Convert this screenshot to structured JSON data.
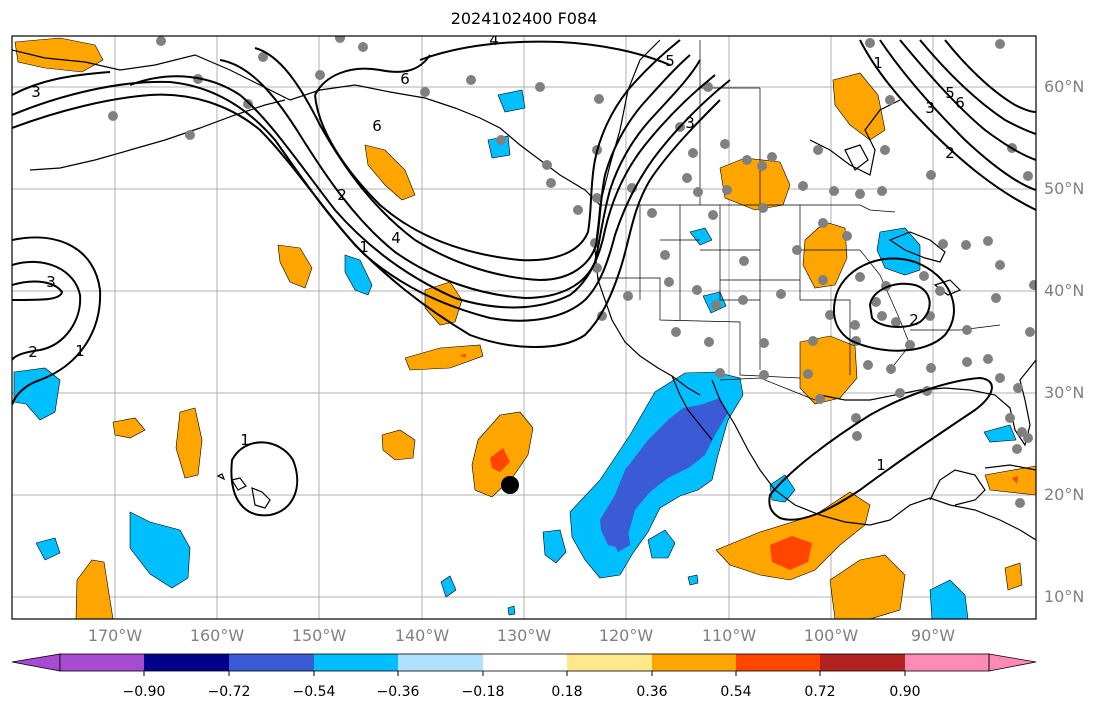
{
  "title": "2024102400 F084",
  "lat_labels": [
    "60°N",
    "50°N",
    "40°N",
    "30°N",
    "20°N",
    "10°N"
  ],
  "lon_labels": [
    "170°W",
    "160°W",
    "150°W",
    "140°W",
    "130°W",
    "120°W",
    "110°W",
    "100°W",
    "90°W"
  ],
  "contour_labels": [
    "3",
    "6",
    "6",
    "5",
    "4",
    "3",
    "2",
    "1",
    "1",
    "2",
    "3",
    "4",
    "5",
    "6",
    "3",
    "2",
    "1",
    "1",
    "2",
    "1"
  ],
  "colorbar": {
    "ticks": [
      "−0.90",
      "−0.72",
      "−0.54",
      "−0.36",
      "−0.18",
      "0.18",
      "0.36",
      "0.54",
      "0.72",
      "0.90"
    ],
    "colors": [
      "#a64bd2",
      "#00008b",
      "#3b5bd6",
      "#00bfff",
      "#b0e2ff",
      "#ffffff",
      "#ffe98a",
      "#ffa500",
      "#ff4500",
      "#b22222",
      "#ff8ab4"
    ]
  }
}
